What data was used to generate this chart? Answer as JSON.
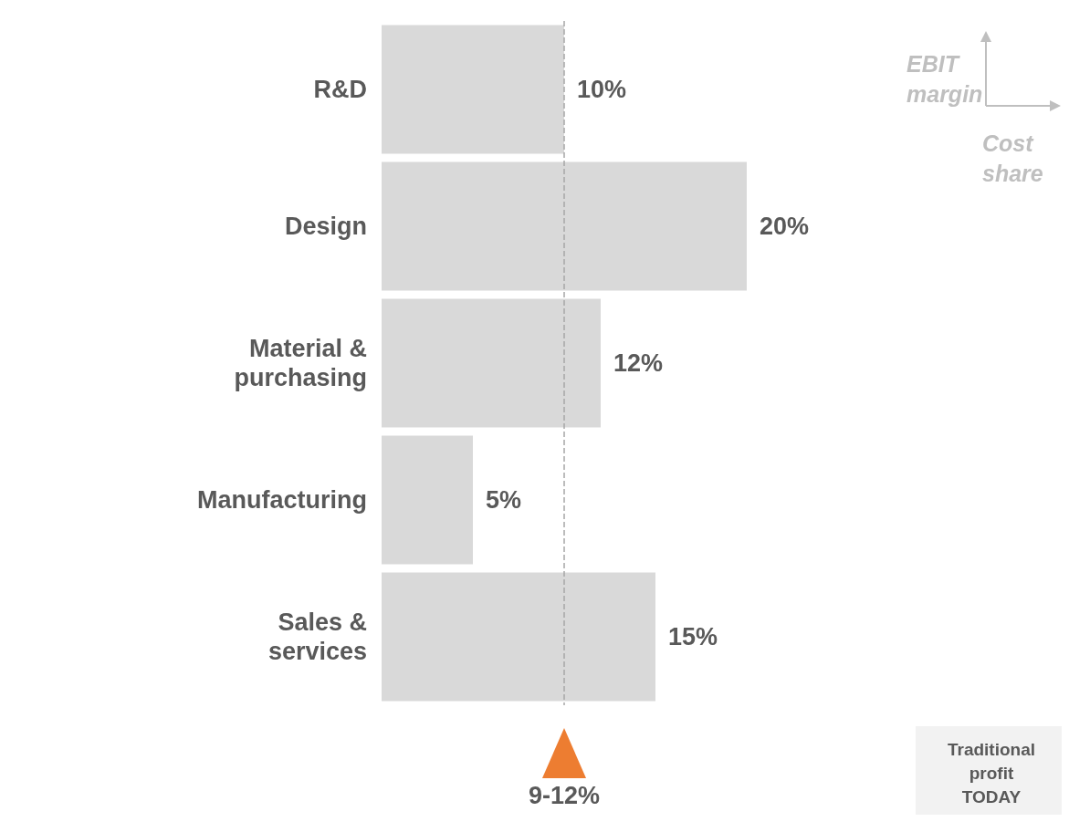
{
  "chart_data": {
    "type": "bar",
    "orientation": "horizontal",
    "categories": [
      "R&D",
      "Design",
      "Material &\npurchasing",
      "Manufacturing",
      "Sales &\nservices"
    ],
    "values": [
      10,
      20,
      12,
      5,
      15
    ],
    "value_labels": [
      "10%",
      "20%",
      "12%",
      "5%",
      "15%"
    ],
    "color": "#d9d9d9",
    "tick_labels": "y",
    "grid": false,
    "ref_lines": [
      {
        "axis": "x",
        "value": 10,
        "color": "#a6a6a6",
        "line_style": "dashed"
      }
    ],
    "annotations": [
      "EBIT margin",
      "Cost share",
      "Traditional profit TODAY",
      "9-12%"
    ]
  }
}
